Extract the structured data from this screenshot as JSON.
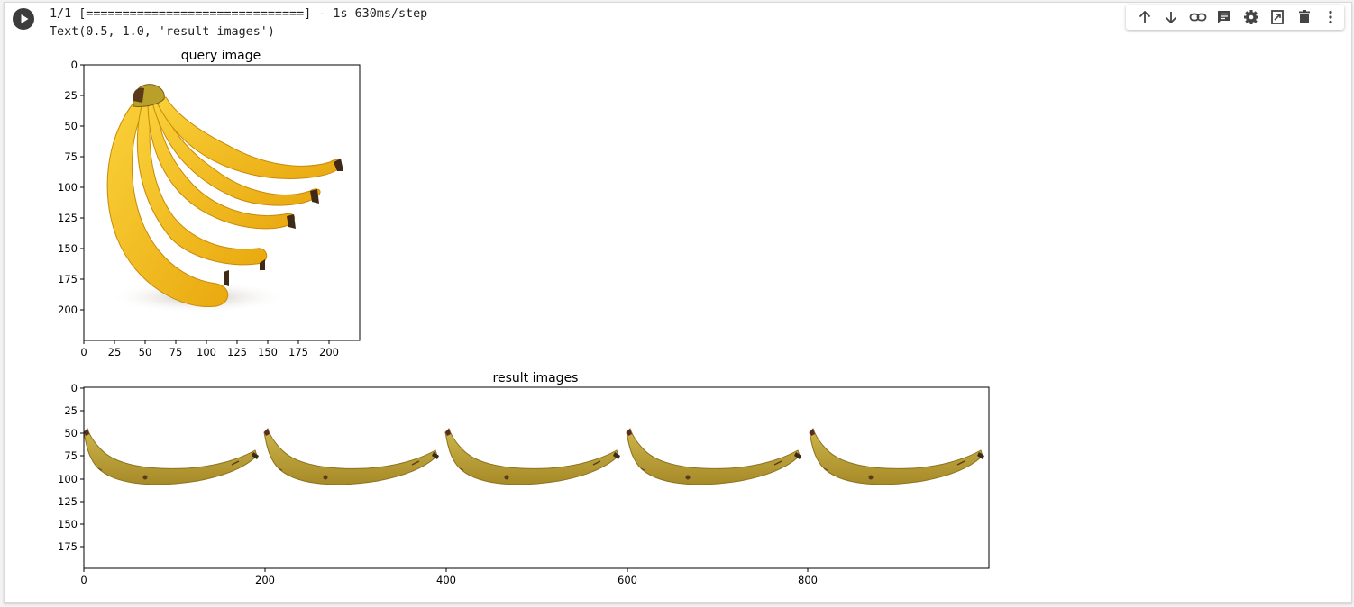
{
  "output": {
    "progress_line": "1/1 [==============================] - 1s 630ms/step",
    "text_line": "Text(0.5, 1.0, 'result images')"
  },
  "toolbar": {
    "icons": [
      "arrow-up-icon",
      "arrow-down-icon",
      "link-icon",
      "comment-icon",
      "settings-icon",
      "mirror-cell-icon",
      "delete-icon",
      "more-vert-icon"
    ]
  },
  "query_plot": {
    "title": "query image",
    "y_ticks": [
      "0",
      "25",
      "50",
      "75",
      "100",
      "125",
      "150",
      "175",
      "200"
    ],
    "x_ticks": [
      "0",
      "25",
      "50",
      "75",
      "100",
      "125",
      "150",
      "175",
      "200"
    ]
  },
  "result_plot": {
    "title": "result images",
    "y_ticks": [
      "0",
      "25",
      "50",
      "75",
      "100",
      "125",
      "150",
      "175"
    ],
    "x_ticks": [
      "0",
      "200",
      "400",
      "600",
      "800"
    ]
  },
  "colors": {
    "banana_yellow": "#f4c21d",
    "banana_dark": "#c2a33a",
    "run_button": "#3c3c3c"
  }
}
